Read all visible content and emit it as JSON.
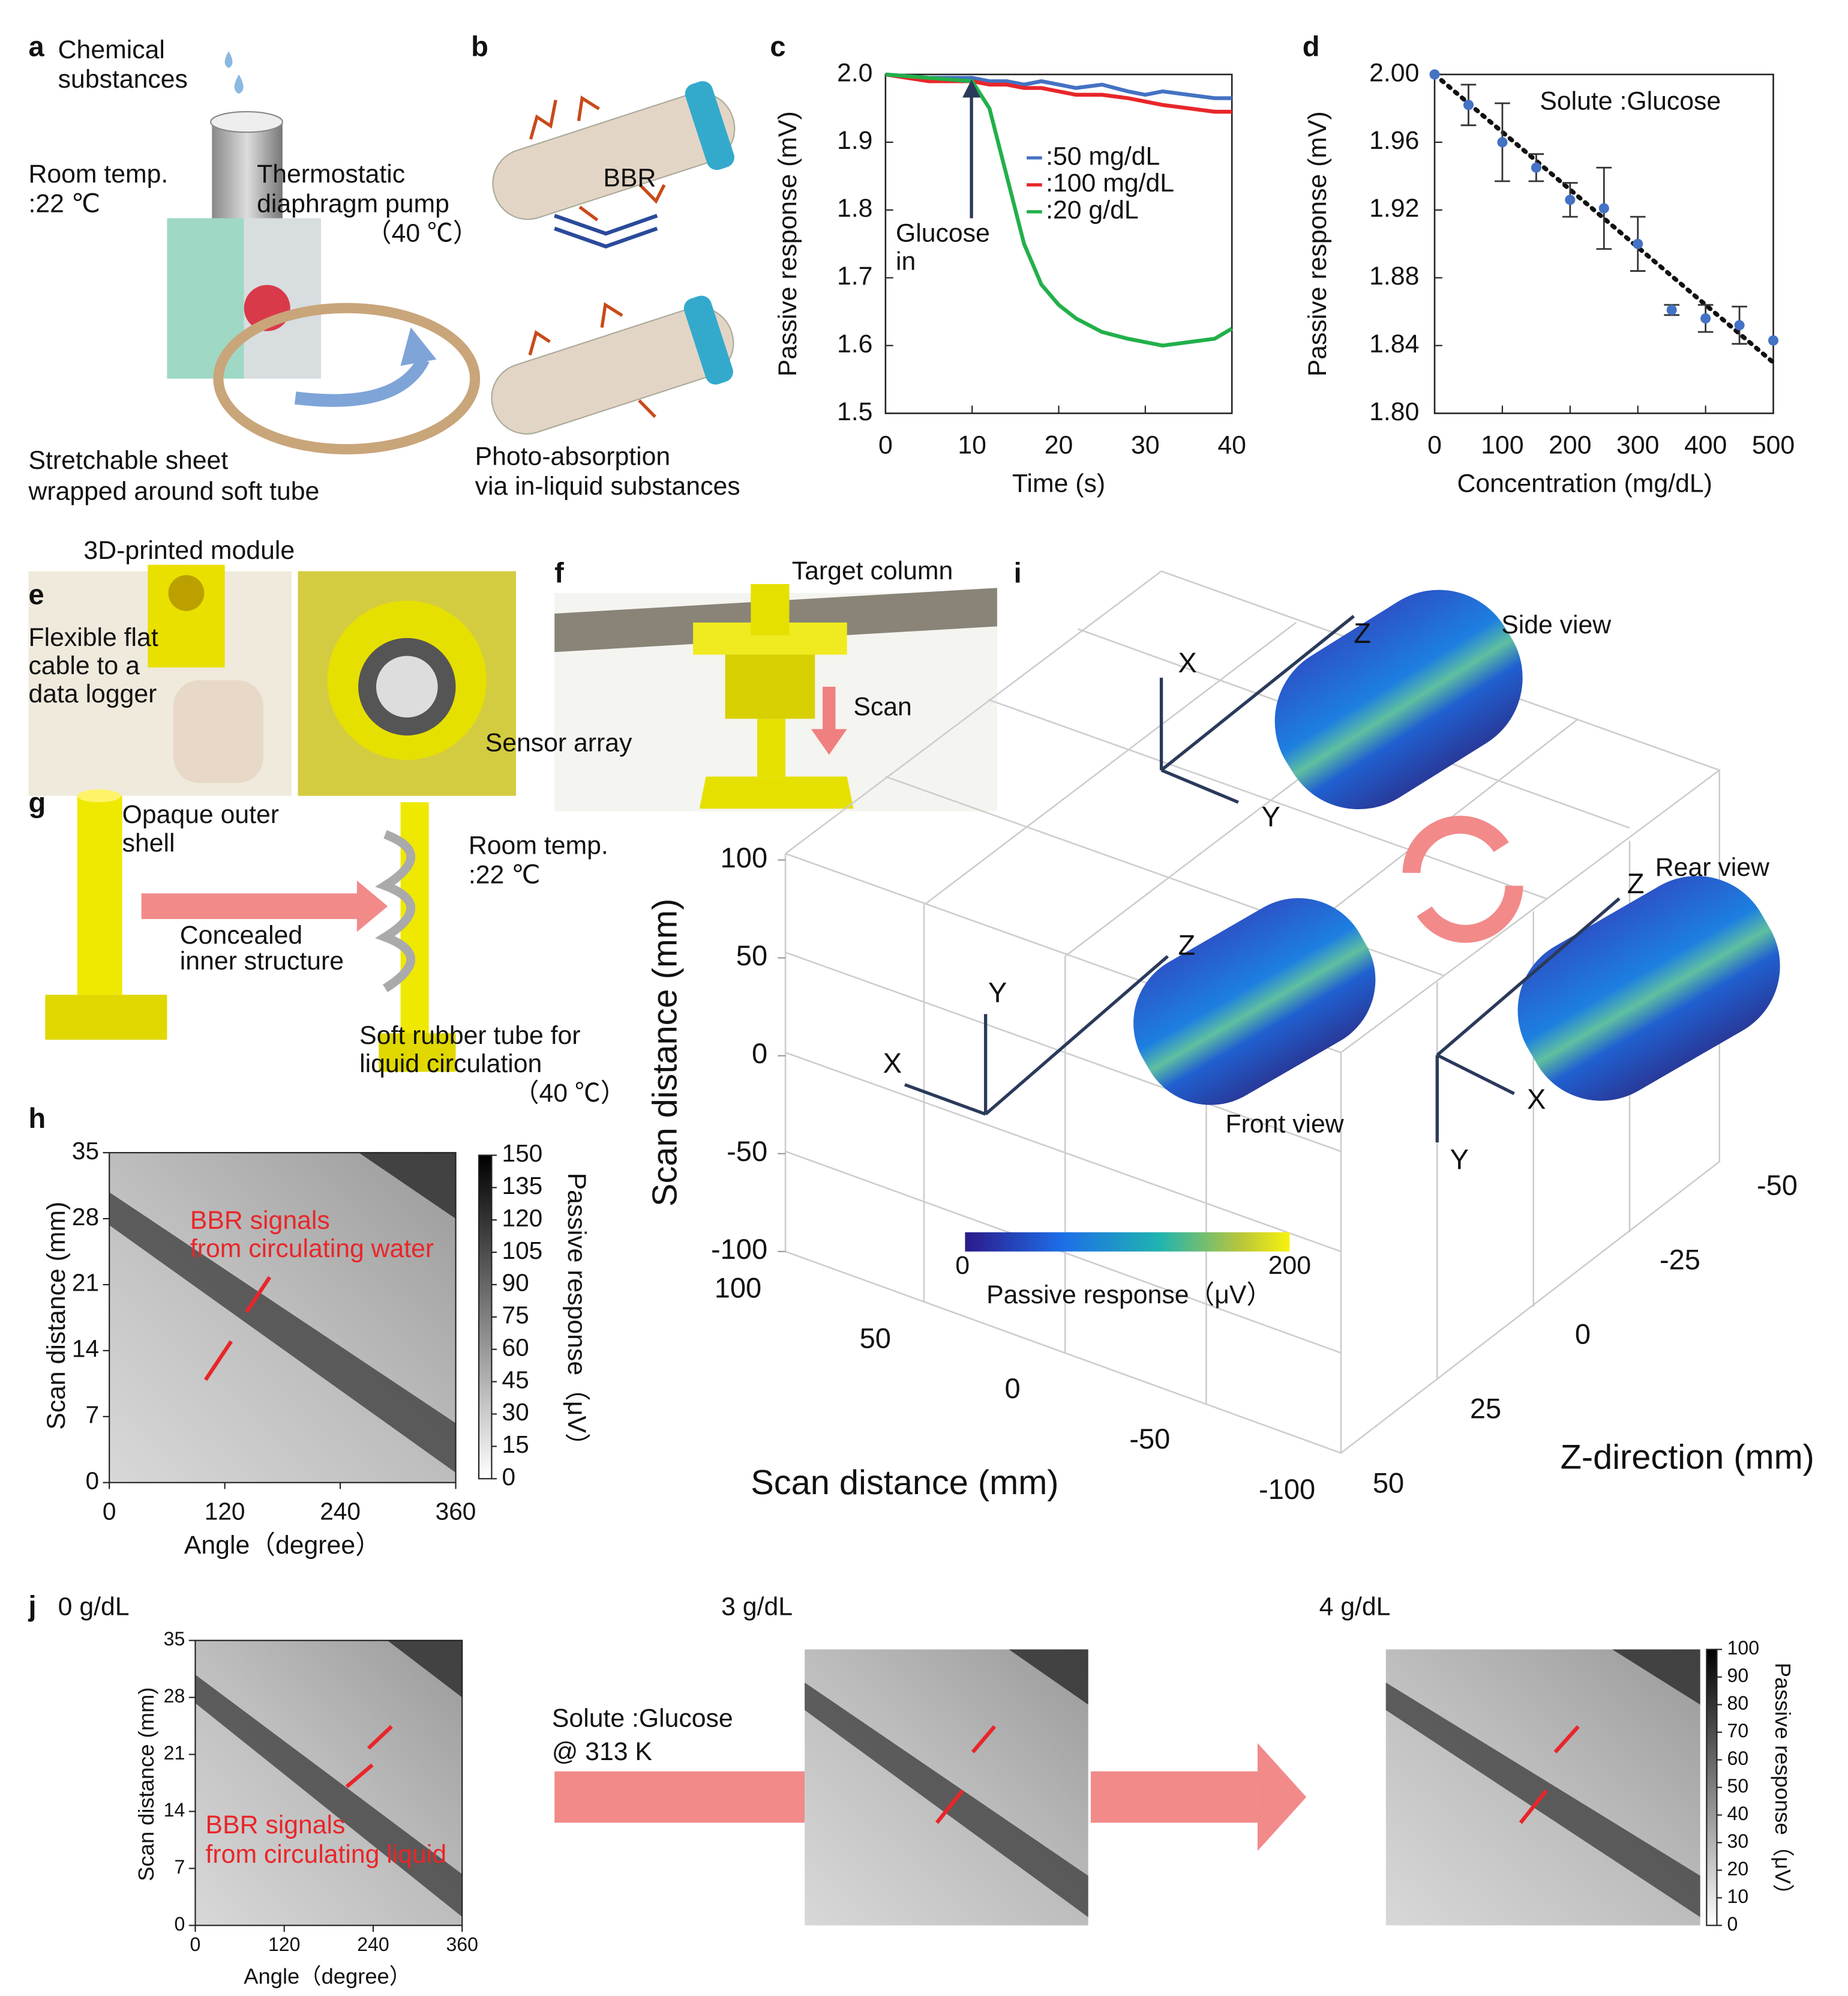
{
  "a": {
    "label": "a",
    "chemical": [
      "Chemical",
      "substances"
    ],
    "room_temp": [
      "Room temp.",
      ":22 ℃"
    ],
    "pump": [
      "Thermostatic",
      "diaphragm pump",
      "（40 ℃）"
    ],
    "sheet": [
      "Stretchable sheet",
      "wrapped around soft tube"
    ]
  },
  "b": {
    "label": "b",
    "bbr": "BBR",
    "caption": [
      "Photo-absorption",
      "via in-liquid substances"
    ]
  },
  "c": {
    "label": "c",
    "type": "line",
    "xlabel": "Time (s)",
    "ylabel": "Passive response (mV)",
    "xlim": [
      0,
      40
    ],
    "xticks": [
      0,
      10,
      20,
      30,
      40
    ],
    "ylim": [
      1.5,
      2.0
    ],
    "yticks": [
      1.5,
      1.6,
      1.7,
      1.8,
      1.9,
      {
        "value": 2,
        "label": "2.0"
      }
    ],
    "x": [
      0,
      5,
      10,
      12,
      14,
      16,
      18,
      20,
      22,
      25,
      28,
      30,
      32,
      35,
      38,
      40
    ],
    "series": [
      {
        "name": ":50 mg/dL",
        "color": "#4472c4",
        "values": [
          2.0,
          1.995,
          1.995,
          1.99,
          1.99,
          1.985,
          1.99,
          1.985,
          1.98,
          1.985,
          1.975,
          1.97,
          1.975,
          1.97,
          1.965,
          1.965
        ]
      },
      {
        "name": ":100 mg/dL",
        "color": "#e8262a",
        "values": [
          2.0,
          1.99,
          1.99,
          1.985,
          1.985,
          1.98,
          1.98,
          1.975,
          1.97,
          1.97,
          1.965,
          1.96,
          1.955,
          1.95,
          1.945,
          1.945
        ]
      },
      {
        "name": ":20 g/dL",
        "color": "#22b04a",
        "values": [
          2.0,
          1.995,
          1.99,
          1.95,
          1.85,
          1.75,
          1.69,
          1.66,
          1.64,
          1.62,
          1.61,
          1.605,
          1.6,
          1.605,
          1.61,
          1.625
        ]
      }
    ],
    "annotation": [
      "Glucose",
      "in"
    ]
  },
  "d": {
    "label": "d",
    "type": "scatter",
    "xlabel": "Concentration (mg/dL)",
    "ylabel": "Passive response (mV)",
    "xlim": [
      0,
      500
    ],
    "xticks": [
      0,
      100,
      200,
      300,
      400,
      500
    ],
    "ylim": [
      1.8,
      2.0
    ],
    "yticks": [
      {
        "value": 1.8,
        "label": "1.80"
      },
      1.84,
      1.88,
      1.92,
      1.96,
      {
        "value": 2,
        "label": "2.00"
      }
    ],
    "x": [
      0,
      50,
      100,
      150,
      200,
      250,
      300,
      350,
      400,
      450,
      500
    ],
    "values": [
      2.0,
      1.982,
      1.96,
      1.945,
      1.926,
      1.921,
      1.9,
      1.861,
      1.856,
      1.852,
      1.843
    ],
    "errors": [
      0,
      0.012,
      0.023,
      0.008,
      0.01,
      0.024,
      0.016,
      0.003,
      0.008,
      0.011,
      0
    ],
    "color": "#4472c4",
    "trend": {
      "x": [
        0,
        500
      ],
      "values": [
        2.0,
        1.83
      ]
    },
    "annotation": "Solute :Glucose"
  },
  "e": {
    "label": "e",
    "module": "3D-printed module",
    "cable": [
      "Flexible flat",
      "cable to a",
      "data logger"
    ],
    "sensor": "Sensor array"
  },
  "f": {
    "label": "f",
    "target": "Target column",
    "scan": "Scan"
  },
  "g": {
    "label": "g",
    "shell": [
      "Opaque outer",
      "shell"
    ],
    "concealed": [
      "Concealed",
      "inner structure"
    ],
    "room_temp": [
      "Room temp.",
      ":22 ℃"
    ],
    "tube": [
      "Soft rubber tube for",
      "liquid circulation",
      "（40 ℃）"
    ]
  },
  "h": {
    "label": "h",
    "xlabel": "Angle（degree）",
    "ylabel": "Scan distance (mm)",
    "xlim": [
      0,
      360
    ],
    "xticks": [
      0,
      120,
      240,
      360
    ],
    "ylim": [
      0,
      35
    ],
    "yticks": [
      0,
      7,
      14,
      21,
      28,
      35
    ],
    "colorbar": {
      "lim": [
        0,
        150
      ],
      "ticks": [
        0,
        15,
        30,
        45,
        60,
        75,
        90,
        105,
        120,
        135,
        150
      ],
      "label": "Passive response（μV）"
    },
    "annotation": [
      "BBR signals",
      "from circulating water"
    ]
  },
  "i": {
    "label": "i",
    "vlabel": "Scan distance (mm)",
    "vlim": [
      -100,
      100
    ],
    "vticks": [
      100,
      50,
      0,
      -50,
      -100
    ],
    "dlabel": "Scan distance (mm)",
    "dlim": [
      100,
      -100
    ],
    "dticks": [
      100,
      50,
      0,
      -50,
      -100
    ],
    "zlabel": "Z-direction (mm)",
    "zlim": [
      -50,
      50
    ],
    "zticks": [
      -50,
      -25,
      0,
      25,
      50
    ],
    "colorbar": {
      "lim": [
        0,
        200
      ],
      "ticks": [
        0,
        200
      ],
      "label": "Passive response（μV）"
    },
    "views": [
      {
        "name": "Side view",
        "axes": [
          "X",
          "Y",
          "Z"
        ]
      },
      {
        "name": "Front view",
        "axes": [
          "X",
          "Y",
          "Z"
        ]
      },
      {
        "name": "Rear view",
        "axes": [
          "X",
          "Y",
          "Z"
        ]
      }
    ]
  },
  "j": {
    "label": "j",
    "titles": [
      "0 g/dL",
      "3 g/dL",
      "4 g/dL"
    ],
    "xlabel": "Angle（degree）",
    "ylabel": "Scan distance (mm)",
    "xlim": [
      0,
      360
    ],
    "xticks": [
      0,
      120,
      240,
      360
    ],
    "ylim": [
      0,
      35
    ],
    "yticks": [
      0,
      7,
      14,
      21,
      28,
      35
    ],
    "colorbar": {
      "lim": [
        0,
        100
      ],
      "ticks": [
        0,
        10,
        20,
        30,
        40,
        50,
        60,
        70,
        80,
        90,
        100
      ],
      "label": "Passive response（μV）"
    },
    "annotation": [
      "BBR signals",
      "from circulating liquid"
    ],
    "solute": [
      "Solute :Glucose",
      "@ 313 K"
    ]
  }
}
